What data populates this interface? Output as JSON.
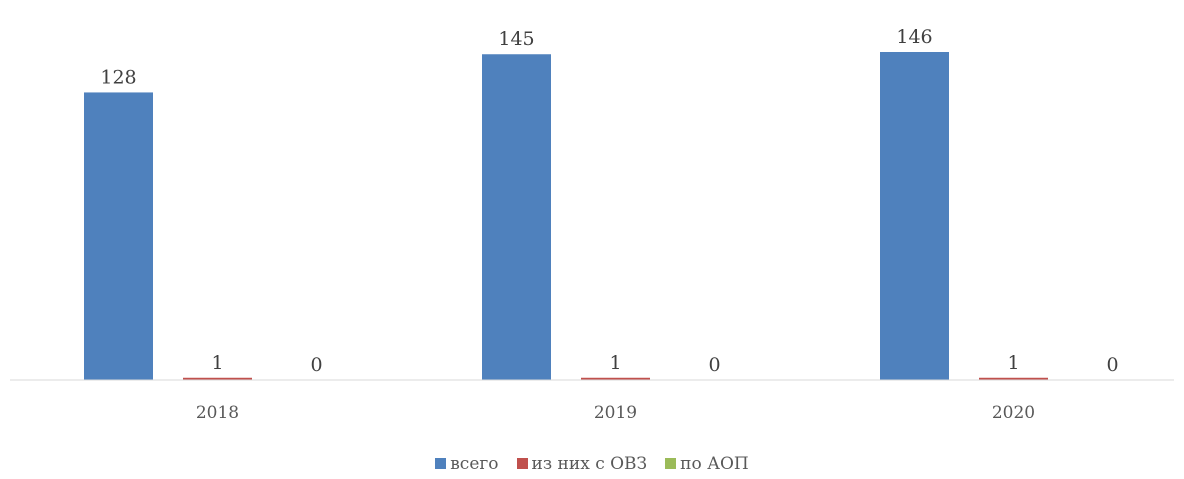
{
  "chart_data": {
    "type": "bar",
    "categories": [
      "2018",
      "2019",
      "2020"
    ],
    "series": [
      {
        "name": "всего",
        "color": "#4F81BD",
        "values": [
          128,
          145,
          146
        ]
      },
      {
        "name": "из них с ОВЗ",
        "color": "#C0504D",
        "values": [
          1,
          1,
          1
        ]
      },
      {
        "name": "по АОП",
        "color": "#9BBB59",
        "values": [
          0,
          0,
          0
        ]
      }
    ],
    "data_labels": true,
    "legend_position": "bottom",
    "grid": false,
    "ylim": [
      0,
      146
    ]
  },
  "legend": {
    "items": [
      {
        "label": "всего",
        "color": "#4F81BD"
      },
      {
        "label": "из них с ОВЗ",
        "color": "#C0504D"
      },
      {
        "label": "по АОП",
        "color": "#9BBB59"
      }
    ]
  }
}
